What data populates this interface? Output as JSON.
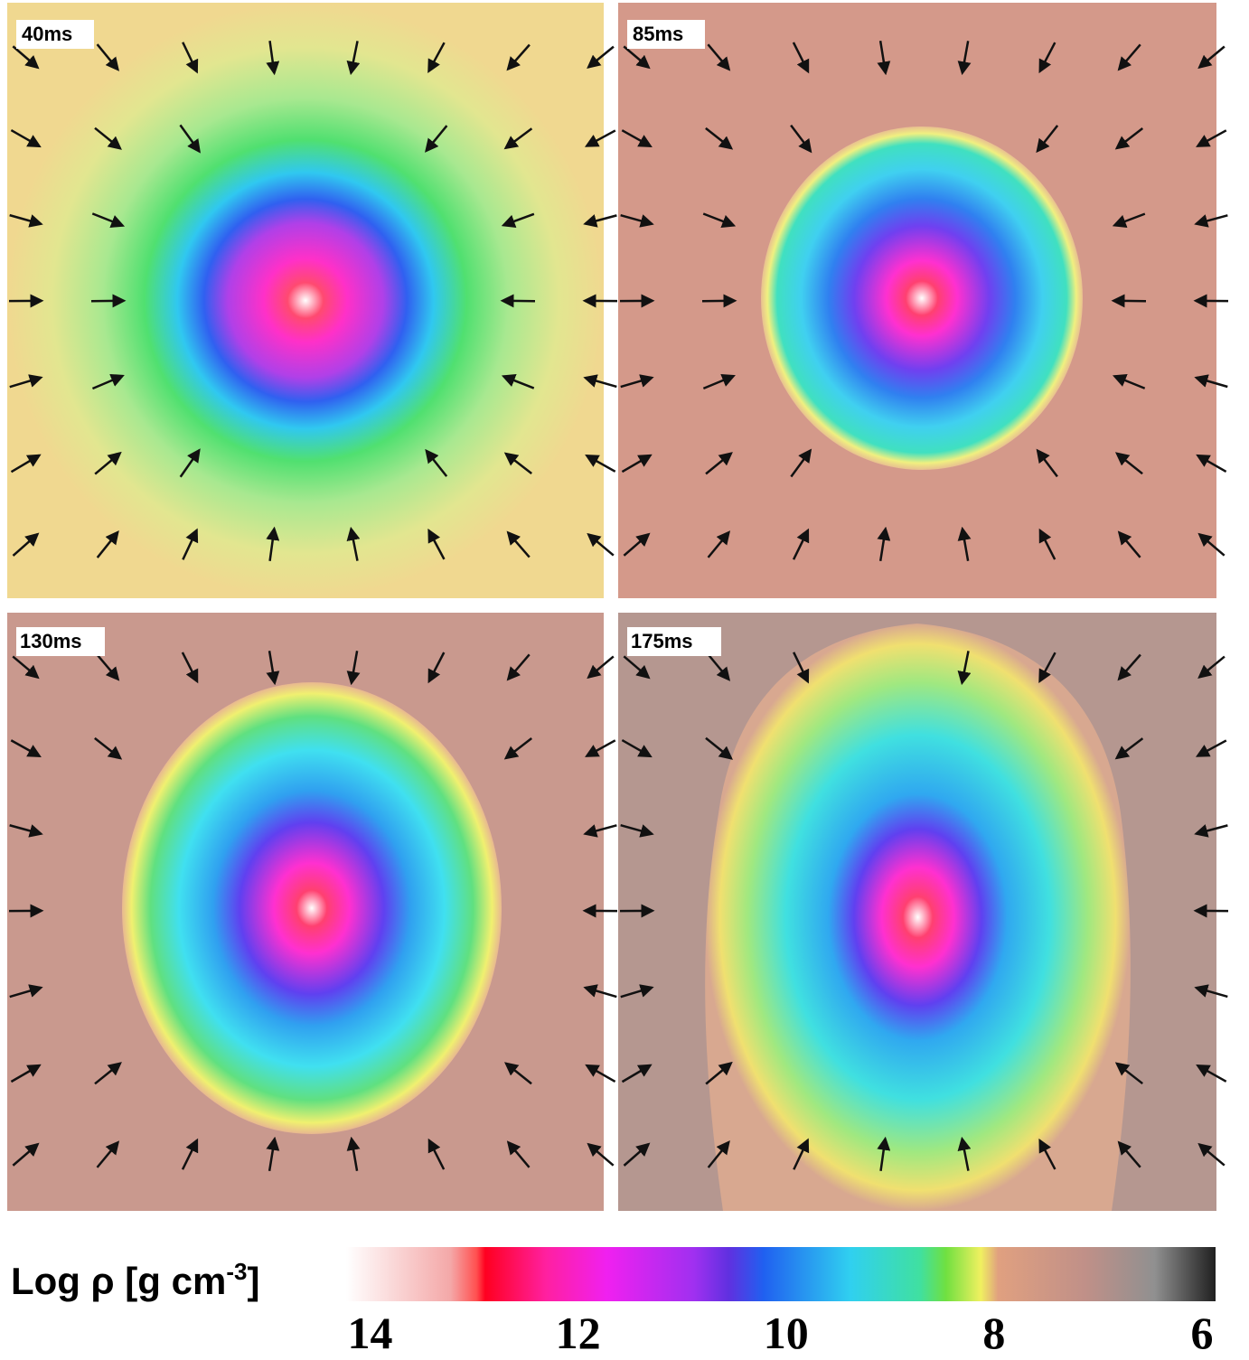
{
  "panels": [
    {
      "label": "40ms"
    },
    {
      "label": "85ms"
    },
    {
      "label": "130ms"
    },
    {
      "label": "175ms"
    }
  ],
  "colorbar": {
    "label": "Log ρ [g cm",
    "label_sup": "-3",
    "label_end": "]",
    "range": [
      14.23,
      5.87
    ],
    "ticks": [
      14,
      12,
      10,
      8,
      6
    ]
  }
}
